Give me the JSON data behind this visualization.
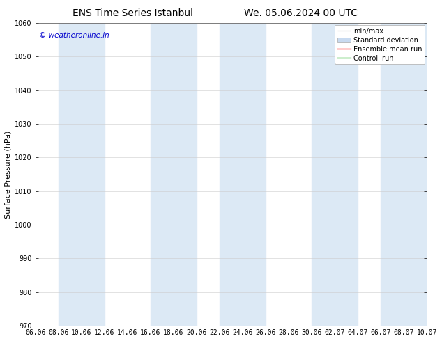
{
  "title_left": "ENS Time Series Istanbul",
  "title_right": "We. 05.06.2024 00 UTC",
  "ylabel": "Surface Pressure (hPa)",
  "ylim": [
    970,
    1060
  ],
  "yticks": [
    970,
    980,
    990,
    1000,
    1010,
    1020,
    1030,
    1040,
    1050,
    1060
  ],
  "xtick_labels": [
    "06.06",
    "08.06",
    "10.06",
    "12.06",
    "14.06",
    "16.06",
    "18.06",
    "20.06",
    "22.06",
    "24.06",
    "26.06",
    "28.06",
    "30.06",
    "02.07",
    "04.07",
    "06.07",
    "08.07",
    "10.07"
  ],
  "watermark": "© weatheronline.in",
  "watermark_color": "#0000cc",
  "band_color": "#dce9f5",
  "background_color": "#ffffff",
  "plot_bg_color": "#ffffff",
  "border_color": "#555555",
  "legend_items": [
    "min/max",
    "Standard deviation",
    "Ensemble mean run",
    "Controll run"
  ],
  "legend_colors": [
    "#aaaaaa",
    "#c8daf0",
    "#ff0000",
    "#00aa00"
  ],
  "title_fontsize": 10,
  "tick_fontsize": 7,
  "ylabel_fontsize": 8,
  "legend_fontsize": 7,
  "watermark_fontsize": 7.5
}
